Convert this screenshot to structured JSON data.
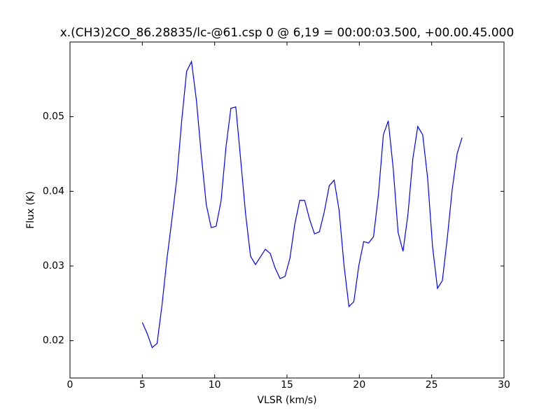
{
  "chart_data": {
    "type": "line",
    "title": "x.(CH3)2CO_86.28835/lc-@61.csp 0 @ 6,19 = 00:00:03.500, +00.00.45.000",
    "x_label": "VLSR (km/s)",
    "y_label": "Flux (K)",
    "x": [
      5.0,
      5.34,
      5.68,
      6.02,
      6.36,
      6.7,
      7.04,
      7.38,
      7.72,
      8.06,
      8.4,
      8.74,
      9.08,
      9.42,
      9.76,
      10.1,
      10.44,
      10.78,
      11.12,
      11.46,
      11.8,
      12.14,
      12.48,
      12.82,
      13.16,
      13.5,
      13.84,
      14.18,
      14.52,
      14.86,
      15.2,
      15.54,
      15.88,
      16.22,
      16.56,
      16.9,
      17.24,
      17.58,
      17.92,
      18.26,
      18.6,
      18.94,
      19.28,
      19.62,
      19.96,
      20.3,
      20.64,
      20.98,
      21.32,
      21.66,
      22.0,
      22.34,
      22.68,
      23.02,
      23.36,
      23.7,
      24.04,
      24.38,
      24.72,
      25.06,
      25.4,
      25.74,
      26.08,
      26.42,
      26.76,
      27.1
    ],
    "series": [
      {
        "color": "#0000ff",
        "values": [
          0.02243,
          0.02093,
          0.01907,
          0.01963,
          0.02477,
          0.03093,
          0.03617,
          0.04168,
          0.04944,
          0.05607,
          0.05738,
          0.05215,
          0.04477,
          0.03822,
          0.03514,
          0.03533,
          0.03869,
          0.04589,
          0.05112,
          0.05131,
          0.04421,
          0.03692,
          0.03131,
          0.03019,
          0.03121,
          0.03224,
          0.03168,
          0.02972,
          0.02832,
          0.0286,
          0.03103,
          0.03561,
          0.03879,
          0.03879,
          0.03626,
          0.0343,
          0.03458,
          0.03729,
          0.04075,
          0.0415,
          0.03748,
          0.03009,
          0.02458,
          0.02523,
          0.03,
          0.03327,
          0.03308,
          0.03393,
          0.03953,
          0.04757,
          0.04944,
          0.04308,
          0.03449,
          0.03196,
          0.03692,
          0.04439,
          0.04869,
          0.04757,
          0.04178,
          0.03262,
          0.02701,
          0.02804,
          0.03374,
          0.04028,
          0.04505,
          0.0472
        ]
      }
    ],
    "xlim": [
      0,
      30
    ],
    "xticks": [
      0,
      5,
      10,
      15,
      20,
      25,
      30
    ],
    "ylim": [
      0.015,
      0.06
    ],
    "yticks": [
      0.02,
      0.03,
      0.04,
      0.05
    ]
  }
}
